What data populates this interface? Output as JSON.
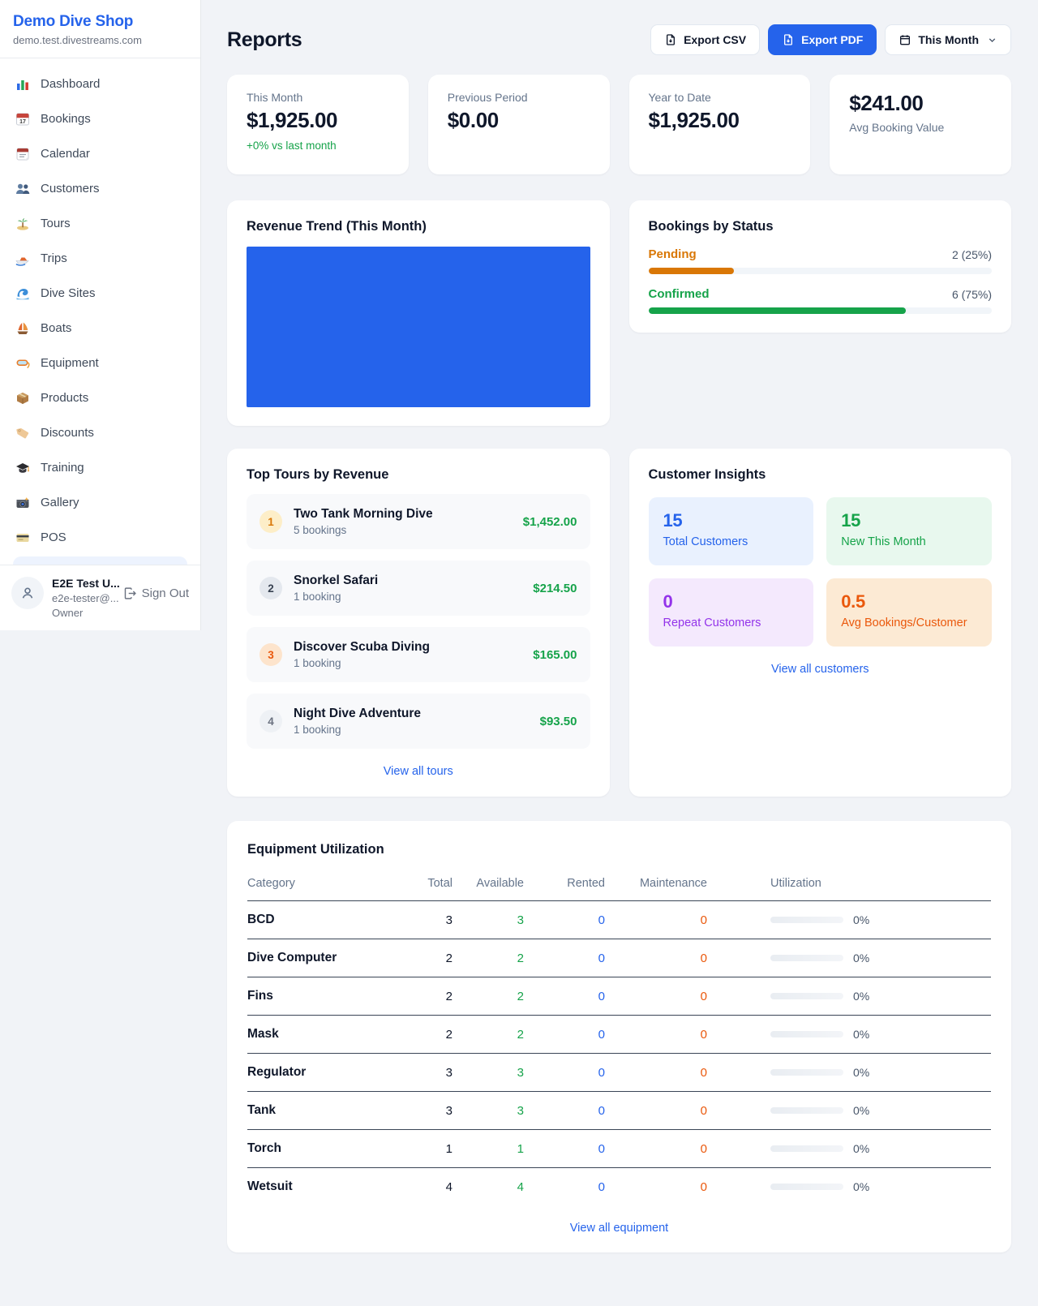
{
  "colors": {
    "accent": "#2563eb",
    "success": "#16a34a",
    "warning": "#d97706",
    "alert": "#ea580c",
    "link": "#2563eb"
  },
  "sidebar": {
    "brand": {
      "name": "Demo Dive Shop",
      "domain": "demo.test.divestreams.com"
    },
    "items": [
      {
        "label": "Dashboard",
        "icon": "bar-chart-icon"
      },
      {
        "label": "Bookings",
        "icon": "calendar-date-icon"
      },
      {
        "label": "Calendar",
        "icon": "tear-calendar-icon"
      },
      {
        "label": "Customers",
        "icon": "people-icon"
      },
      {
        "label": "Tours",
        "icon": "island-icon"
      },
      {
        "label": "Trips",
        "icon": "speedboat-icon"
      },
      {
        "label": "Dive Sites",
        "icon": "wave-icon"
      },
      {
        "label": "Boats",
        "icon": "sailboat-icon"
      },
      {
        "label": "Equipment",
        "icon": "dive-mask-icon"
      },
      {
        "label": "Products",
        "icon": "package-icon"
      },
      {
        "label": "Discounts",
        "icon": "tag-icon"
      },
      {
        "label": "Training",
        "icon": "grad-cap-icon"
      },
      {
        "label": "Gallery",
        "icon": "camera-icon"
      },
      {
        "label": "POS",
        "icon": "credit-card-icon"
      }
    ],
    "user": {
      "name": "E2E Test U...",
      "email": "e2e-tester@...",
      "role": "Owner",
      "sign_out_label": "Sign Out"
    }
  },
  "header": {
    "title": "Reports",
    "export_csv_label": "Export CSV",
    "export_pdf_label": "Export PDF",
    "period_label": "This Month"
  },
  "stats": {
    "this_month": {
      "label": "This Month",
      "value": "$1,925.00",
      "delta": "+0% vs last month"
    },
    "previous_period": {
      "label": "Previous Period",
      "value": "$0.00"
    },
    "year_to_date": {
      "label": "Year to Date",
      "value": "$1,925.00"
    },
    "avg_booking": {
      "value": "$241.00",
      "label": "Avg Booking Value"
    }
  },
  "revenue_trend": {
    "title": "Revenue Trend (This Month)",
    "chart_fill": "#2563eb"
  },
  "bookings_by_status": {
    "title": "Bookings by Status",
    "items": [
      {
        "label": "Pending",
        "count": 2,
        "value_text": "2 (25%)",
        "percent": 25,
        "color": "#d97706"
      },
      {
        "label": "Confirmed",
        "count": 6,
        "value_text": "6 (75%)",
        "percent": 75,
        "color": "#16a34a"
      }
    ]
  },
  "top_tours": {
    "title": "Top Tours by Revenue",
    "items": [
      {
        "rank": "1",
        "name": "Two Tank Morning Dive",
        "bookings": "5 bookings",
        "revenue": "$1,452.00"
      },
      {
        "rank": "2",
        "name": "Snorkel Safari",
        "bookings": "1 booking",
        "revenue": "$214.50"
      },
      {
        "rank": "3",
        "name": "Discover Scuba Diving",
        "bookings": "1 booking",
        "revenue": "$165.00"
      },
      {
        "rank": "4",
        "name": "Night Dive Adventure",
        "bookings": "1 booking",
        "revenue": "$93.50"
      }
    ],
    "view_all_label": "View all tours"
  },
  "customer_insights": {
    "title": "Customer Insights",
    "tiles": [
      {
        "value": "15",
        "label": "Total Customers",
        "color": "#2563eb",
        "bg": "#e9f1fe"
      },
      {
        "value": "15",
        "label": "New This Month",
        "color": "#16a34a",
        "bg": "#e8f8ee"
      },
      {
        "value": "0",
        "label": "Repeat Customers",
        "color": "#9333ea",
        "bg": "#f4e9fd"
      },
      {
        "value": "0.5",
        "label": "Avg Bookings/Customer",
        "color": "#ea580c",
        "bg": "#fcead4"
      }
    ],
    "view_all_label": "View all customers"
  },
  "equipment": {
    "title": "Equipment Utilization",
    "columns": [
      "Category",
      "Total",
      "Available",
      "Rented",
      "Maintenance",
      "Utilization"
    ],
    "rows": [
      {
        "category": "BCD",
        "total": "3",
        "available": "3",
        "rented": "0",
        "maintenance": "0",
        "utilization": "0%"
      },
      {
        "category": "Dive Computer",
        "total": "2",
        "available": "2",
        "rented": "0",
        "maintenance": "0",
        "utilization": "0%"
      },
      {
        "category": "Fins",
        "total": "2",
        "available": "2",
        "rented": "0",
        "maintenance": "0",
        "utilization": "0%"
      },
      {
        "category": "Mask",
        "total": "2",
        "available": "2",
        "rented": "0",
        "maintenance": "0",
        "utilization": "0%"
      },
      {
        "category": "Regulator",
        "total": "3",
        "available": "3",
        "rented": "0",
        "maintenance": "0",
        "utilization": "0%"
      },
      {
        "category": "Tank",
        "total": "3",
        "available": "3",
        "rented": "0",
        "maintenance": "0",
        "utilization": "0%"
      },
      {
        "category": "Torch",
        "total": "1",
        "available": "1",
        "rented": "0",
        "maintenance": "0",
        "utilization": "0%"
      },
      {
        "category": "Wetsuit",
        "total": "4",
        "available": "4",
        "rented": "0",
        "maintenance": "0",
        "utilization": "0%"
      }
    ],
    "view_all_label": "View all equipment"
  }
}
